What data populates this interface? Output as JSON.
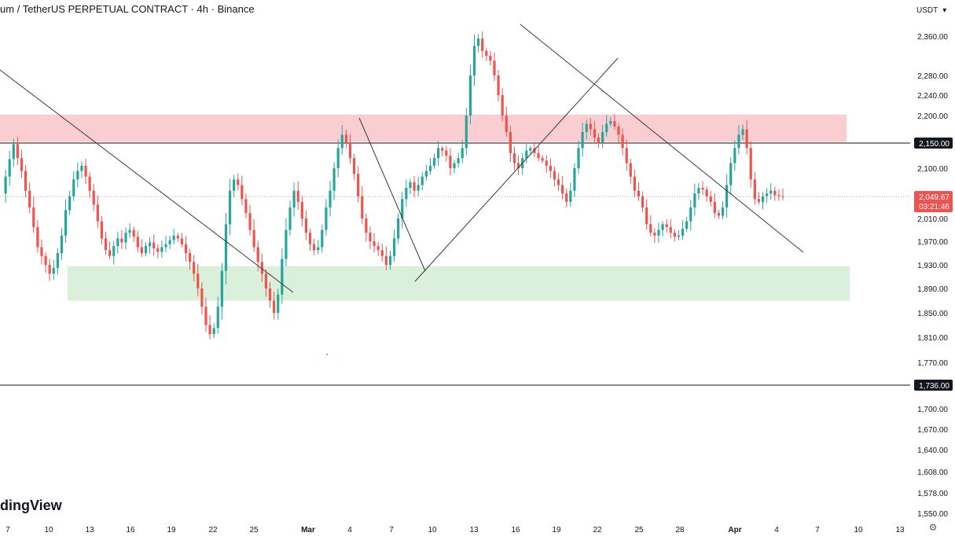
{
  "header": {
    "symbol": "um",
    "separator": "/",
    "contract": "TetherUS PERPETUAL CONTRACT",
    "dot1": "·",
    "interval": "4h",
    "dot2": "·",
    "exchange": "Binance"
  },
  "currency": {
    "label": "USDT",
    "chevron_icon": "chevron-down-icon"
  },
  "watermark": "dingView",
  "settings_icon": "gear-icon",
  "price_labels": {
    "resistance": "2,150.00",
    "support": "1,736.00",
    "current": "2,049.67",
    "countdown": "03:21:46"
  },
  "colors": {
    "up": "#26a69a",
    "down": "#ef5350",
    "resistance_zone": "#f9c9cc",
    "support_zone": "#d6eed6",
    "trendline": "#3a3a3a",
    "hline": "#111111",
    "price_badge": "#ef5350",
    "dark_badge": "#131722"
  },
  "chart_data": {
    "type": "candlestick",
    "y_axis": {
      "ticks": [
        "2,360.00",
        "2,280.00",
        "2,240.00",
        "2,200.00",
        "2,100.00",
        "2,010.00",
        "1,970.00",
        "1,930.00",
        "1,890.00",
        "1,850.00",
        "1,810.00",
        "1,770.00",
        "1,700.00",
        "1,670.00",
        "1,640.00",
        "1,608.00",
        "1,578.00",
        "1,550.00"
      ]
    },
    "x_axis": {
      "ticks": [
        "7",
        "10",
        "13",
        "16",
        "19",
        "22",
        "25",
        "Mar",
        "4",
        "7",
        "10",
        "13",
        "16",
        "19",
        "22",
        "25",
        "28",
        "Apr",
        "4",
        "7",
        "10",
        "13"
      ]
    },
    "horizontal_lines": [
      2150,
      1736
    ],
    "current_price": 2049.67,
    "zones": [
      {
        "type": "resistance",
        "from": 2152,
        "to": 2202
      },
      {
        "type": "support",
        "from": 1870,
        "to": 1928
      }
    ],
    "price_path": [
      2055,
      2085,
      2118,
      2148,
      2120,
      2095,
      2060,
      2030,
      1995,
      1960,
      1945,
      1930,
      1915,
      1925,
      1950,
      1980,
      2025,
      2050,
      2080,
      2095,
      2105,
      2085,
      2060,
      2035,
      2005,
      1975,
      1955,
      1945,
      1962,
      1975,
      1968,
      1985,
      1990,
      1978,
      1960,
      1950,
      1962,
      1968,
      1958,
      1952,
      1960,
      1965,
      1972,
      1980,
      1975,
      1965,
      1950,
      1935,
      1915,
      1890,
      1860,
      1830,
      1815,
      1825,
      1860,
      1920,
      2000,
      2060,
      2080,
      2070,
      2045,
      2020,
      1990,
      1960,
      1935,
      1915,
      1890,
      1870,
      1850,
      1880,
      1940,
      1990,
      2030,
      2060,
      2040,
      2010,
      1985,
      1965,
      1955,
      1960,
      1990,
      2030,
      2060,
      2100,
      2140,
      2165,
      2150,
      2120,
      2090,
      2050,
      2010,
      1985,
      1970,
      1962,
      1955,
      1945,
      1930,
      1945,
      1975,
      2010,
      2045,
      2065,
      2075,
      2060,
      2070,
      2085,
      2095,
      2105,
      2120,
      2140,
      2135,
      2125,
      2100,
      2110,
      2120,
      2140,
      2200,
      2280,
      2340,
      2355,
      2330,
      2320,
      2310,
      2280,
      2240,
      2200,
      2170,
      2130,
      2110,
      2100,
      2120,
      2135,
      2140,
      2130,
      2120,
      2115,
      2105,
      2095,
      2080,
      2070,
      2055,
      2040,
      2060,
      2100,
      2140,
      2170,
      2185,
      2175,
      2160,
      2150,
      2170,
      2185,
      2190,
      2180,
      2165,
      2140,
      2110,
      2085,
      2060,
      2050,
      2030,
      2000,
      1985,
      1980,
      1990,
      2000,
      1995,
      1985,
      1978,
      1980,
      1992,
      2005,
      2030,
      2055,
      2065,
      2062,
      2050,
      2040,
      2020,
      2015,
      2030,
      2070,
      2110,
      2140,
      2165,
      2175,
      2140,
      2080,
      2045,
      2040,
      2050,
      2055,
      2060,
      2052,
      2050,
      2049.67
    ],
    "trendlines": [
      {
        "from": {
          "x": "early Feb",
          "y": 2275
        },
        "to": {
          "x": "Mar 1",
          "y": 1890
        }
      },
      {
        "from": {
          "x": "Mar 4",
          "y": 2195
        },
        "to": {
          "x": "Mar 9",
          "y": 1922
        }
      },
      {
        "from": {
          "x": "Mar 9",
          "y": 1910
        },
        "to": {
          "x": "Mar 22",
          "y": 2326
        }
      },
      {
        "from": {
          "x": "Mar 17",
          "y": 2370
        },
        "to": {
          "x": "Apr 5",
          "y": 1952
        }
      }
    ]
  }
}
